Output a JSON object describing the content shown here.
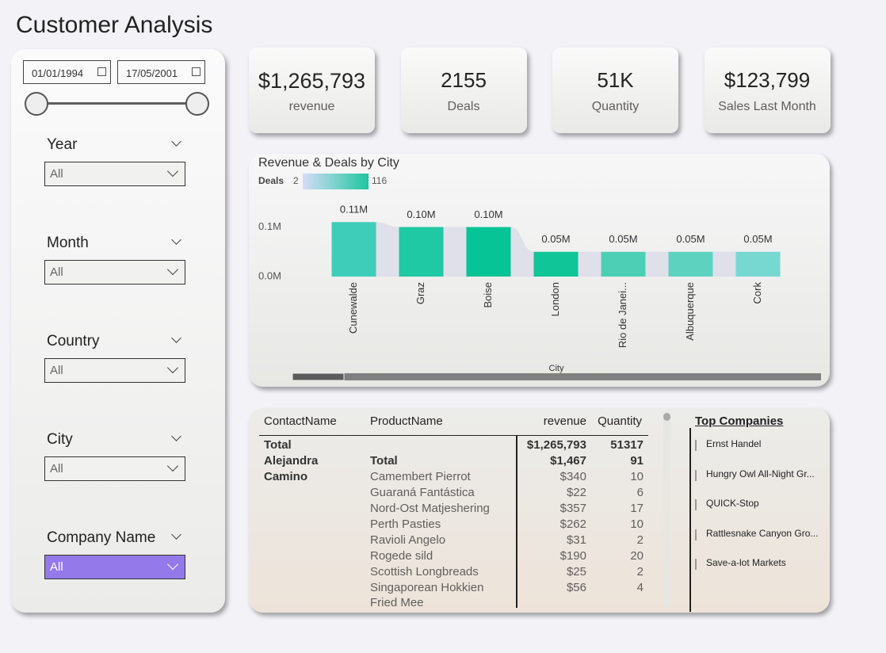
{
  "title": "Customer Analysis",
  "filters": {
    "date_start": "01/01/1994",
    "date_end": "17/05/2001",
    "slicers": [
      {
        "label": "Year",
        "value": "All"
      },
      {
        "label": "Month",
        "value": "All"
      },
      {
        "label": "Country",
        "value": "All"
      },
      {
        "label": "City",
        "value": "All"
      },
      {
        "label": "Company Name",
        "value": "All"
      }
    ]
  },
  "kpis": [
    {
      "value": "$1,265,793",
      "label": "revenue"
    },
    {
      "value": "2155",
      "label": "Deals"
    },
    {
      "value": "51K",
      "label": "Quantity"
    },
    {
      "value": "$123,799",
      "label": "Sales Last Month"
    }
  ],
  "chart_data": {
    "type": "bar",
    "title": "Revenue & Deals by City",
    "x_label": "City",
    "color_legend": {
      "title": "Deals",
      "min_label": "2",
      "max_label": "116",
      "colors": [
        "#d6dcf7",
        "#1dc6a0"
      ]
    },
    "categories": [
      "Cunewalde",
      "Graz",
      "Boise",
      "London",
      "Rio de Janei...",
      "Albuquerque",
      "Cork"
    ],
    "values": [
      0.11,
      0.1,
      0.1,
      0.05,
      0.05,
      0.05,
      0.05
    ],
    "value_labels": [
      "0.11M",
      "0.10M",
      "0.10M",
      "0.05M",
      "0.05M",
      "0.05M",
      "0.05M"
    ],
    "colors": [
      "#3ecdb9",
      "#1fc9a3",
      "#06c496",
      "#10c598",
      "#4ccfb5",
      "#5dd2bf",
      "#77d8d2"
    ],
    "ylim": [
      0,
      0.12
    ],
    "yticks": [
      {
        "value": 0,
        "label": "0.0M"
      },
      {
        "value": 0.1,
        "label": "0.1M"
      }
    ]
  },
  "table": {
    "columns": [
      "ContactName",
      "ProductName",
      "revenue",
      "Quantity"
    ],
    "rows": [
      [
        "Total",
        null,
        "$1,265,793",
        "51317"
      ],
      [
        "Alejandra",
        "Total",
        "$1,467",
        "91"
      ],
      [
        "Camino",
        "Camembert Pierrot",
        "$340",
        "10"
      ],
      [
        null,
        "Guaraná Fantástica",
        "$22",
        "6"
      ],
      [
        null,
        "Nord-Ost Matjeshering",
        "$357",
        "17"
      ],
      [
        null,
        "Perth Pasties",
        "$262",
        "10"
      ],
      [
        null,
        "Ravioli Angelo",
        "$31",
        "2"
      ],
      [
        null,
        "Rogede sild",
        "$190",
        "20"
      ],
      [
        null,
        "Scottish Longbreads",
        "$25",
        "2"
      ],
      [
        null,
        "Singaporean Hokkien Fried Mee",
        "$56",
        "4"
      ]
    ]
  },
  "top_companies": {
    "title": "Top Companies",
    "items": [
      "Ernst Handel",
      "Hungry Owl All-Night Gr...",
      "QUICK-Stop",
      "Rattlesnake Canyon Gro...",
      "Save-a-lot Markets"
    ]
  }
}
